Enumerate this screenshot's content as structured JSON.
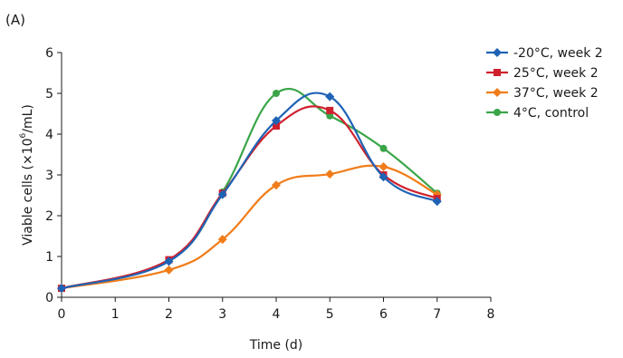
{
  "panel_label": "(A)",
  "chart_data": {
    "type": "line",
    "title": "",
    "xlabel": "Time (d)",
    "ylabel_main": "Viable cells (×10",
    "ylabel_sup": "6",
    "ylabel_tail": "/mL)",
    "xlim": [
      0,
      8
    ],
    "ylim": [
      0,
      6
    ],
    "xticks": [
      0,
      1,
      2,
      3,
      4,
      5,
      6,
      7,
      8
    ],
    "yticks": [
      0,
      1,
      2,
      3,
      4,
      5,
      6
    ],
    "grid": false,
    "legend_position": "top-right",
    "series": [
      {
        "name": "-20°C, week 2",
        "color": "#1f63b5",
        "marker": "diamond",
        "x": [
          0,
          2,
          3,
          4,
          5,
          6,
          7
        ],
        "y": [
          0.22,
          0.88,
          2.52,
          4.33,
          4.92,
          2.95,
          2.35
        ]
      },
      {
        "name": "25°C, week 2",
        "color": "#d0202e",
        "marker": "square",
        "x": [
          0,
          2,
          3,
          4,
          5,
          6,
          7
        ],
        "y": [
          0.22,
          0.92,
          2.55,
          4.2,
          4.58,
          3.0,
          2.42
        ]
      },
      {
        "name": "37°C, week 2",
        "color": "#f07d1a",
        "marker": "diamond",
        "x": [
          0,
          2,
          3,
          4,
          5,
          6,
          7
        ],
        "y": [
          0.22,
          0.67,
          1.42,
          2.75,
          3.02,
          3.2,
          2.52
        ]
      },
      {
        "name": "4°C, control",
        "color": "#3aa548",
        "marker": "circle",
        "x": [
          0,
          2,
          3,
          4,
          5,
          6,
          7
        ],
        "y": [
          0.22,
          0.9,
          2.58,
          5.0,
          4.45,
          3.65,
          2.55
        ]
      }
    ]
  }
}
